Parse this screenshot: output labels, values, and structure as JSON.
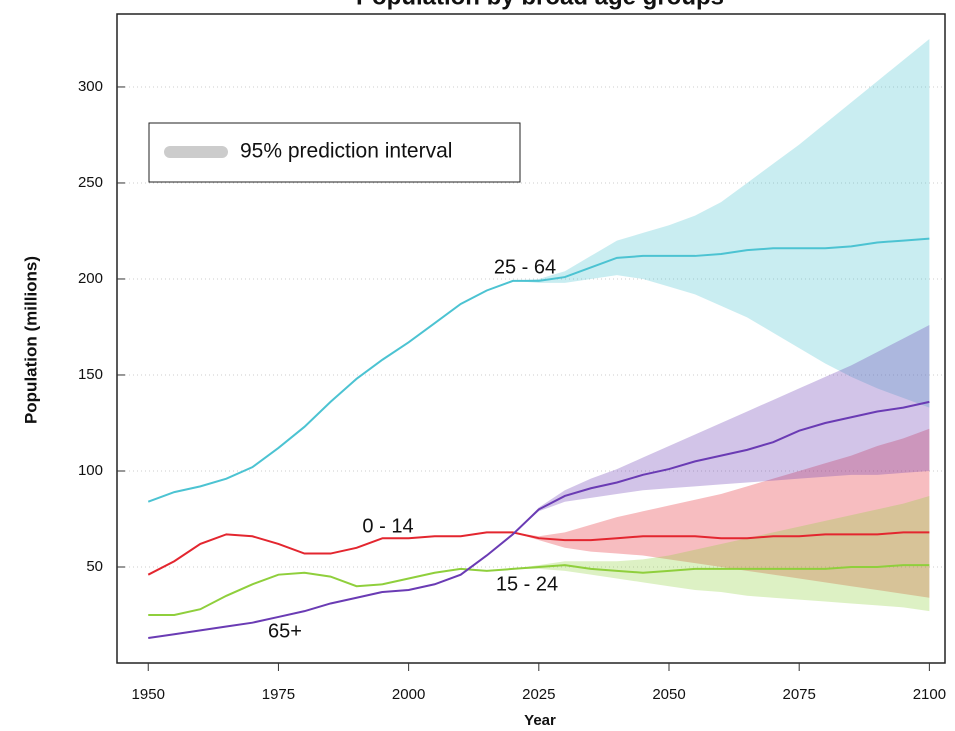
{
  "chart_data": {
    "type": "line",
    "title": "Population by broad age groups",
    "x_label": "Year",
    "y_label": "Population (millions)",
    "x": [
      1950,
      1955,
      1960,
      1965,
      1970,
      1975,
      1980,
      1985,
      1990,
      1995,
      2000,
      2005,
      2010,
      2015,
      2020,
      2025,
      2030,
      2035,
      2040,
      2045,
      2050,
      2055,
      2060,
      2065,
      2070,
      2075,
      2080,
      2085,
      2090,
      2095,
      2100
    ],
    "xlim": [
      1944,
      2103
    ],
    "xticks": [
      1950,
      1975,
      2000,
      2025,
      2050,
      2075,
      2100
    ],
    "ylim": [
      0,
      338
    ],
    "yticks": [
      50,
      100,
      150,
      200,
      250,
      300
    ],
    "grid": true,
    "legend": {
      "label": "95% prediction interval",
      "color": "#cccccc",
      "position": "upper left"
    },
    "series": [
      {
        "name": "25 - 64",
        "color": "#4cc3d2",
        "values": [
          84,
          89,
          92,
          96,
          102,
          112,
          123,
          136,
          148,
          158,
          167,
          177,
          187,
          194,
          199,
          199,
          201,
          206,
          211,
          212,
          212,
          212,
          213,
          215,
          216,
          216,
          216,
          217,
          219,
          220,
          221
        ],
        "upper": [
          null,
          null,
          null,
          null,
          null,
          null,
          null,
          null,
          null,
          null,
          null,
          null,
          null,
          null,
          199,
          200,
          204,
          212,
          220,
          224,
          228,
          233,
          240,
          250,
          260,
          270,
          281,
          292,
          303,
          314,
          325
        ],
        "lower": [
          null,
          null,
          null,
          null,
          null,
          null,
          null,
          null,
          null,
          null,
          null,
          null,
          null,
          null,
          199,
          198,
          198,
          200,
          202,
          200,
          196,
          192,
          186,
          180,
          172,
          164,
          156,
          149,
          143,
          138,
          133
        ]
      },
      {
        "name": "0 - 14",
        "color": "#e3262f",
        "values": [
          46,
          53,
          62,
          67,
          66,
          62,
          57,
          57,
          60,
          65,
          65,
          66,
          66,
          68,
          68,
          65,
          64,
          64,
          65,
          66,
          66,
          66,
          65,
          65,
          66,
          66,
          67,
          67,
          67,
          68,
          68
        ],
        "upper": [
          null,
          null,
          null,
          null,
          null,
          null,
          null,
          null,
          null,
          null,
          null,
          null,
          null,
          null,
          68,
          66,
          68,
          72,
          76,
          79,
          82,
          85,
          88,
          92,
          96,
          100,
          104,
          108,
          113,
          117,
          122
        ],
        "lower": [
          null,
          null,
          null,
          null,
          null,
          null,
          null,
          null,
          null,
          null,
          null,
          null,
          null,
          null,
          68,
          64,
          60,
          58,
          57,
          56,
          54,
          52,
          50,
          48,
          46,
          44,
          42,
          40,
          38,
          36,
          34
        ]
      },
      {
        "name": "15 - 24",
        "color": "#8fcf3c",
        "values": [
          25,
          25,
          28,
          35,
          41,
          46,
          47,
          45,
          40,
          41,
          44,
          47,
          49,
          48,
          49,
          50,
          51,
          49,
          48,
          47,
          48,
          49,
          49,
          49,
          49,
          49,
          49,
          50,
          50,
          51,
          51
        ],
        "upper": [
          null,
          null,
          null,
          null,
          null,
          null,
          null,
          null,
          null,
          null,
          null,
          null,
          null,
          null,
          49,
          51,
          53,
          53,
          53,
          54,
          56,
          59,
          62,
          65,
          68,
          71,
          74,
          77,
          80,
          83,
          87
        ],
        "lower": [
          null,
          null,
          null,
          null,
          null,
          null,
          null,
          null,
          null,
          null,
          null,
          null,
          null,
          null,
          49,
          49,
          48,
          46,
          44,
          42,
          40,
          38,
          37,
          35,
          34,
          33,
          32,
          31,
          30,
          29,
          27
        ]
      },
      {
        "name": "65+",
        "color": "#6a3bb4",
        "values": [
          13,
          15,
          17,
          19,
          21,
          24,
          27,
          31,
          34,
          37,
          38,
          41,
          46,
          56,
          67,
          80,
          87,
          91,
          94,
          98,
          101,
          105,
          108,
          111,
          115,
          121,
          125,
          128,
          131,
          133,
          136
        ],
        "upper": [
          null,
          null,
          null,
          null,
          null,
          null,
          null,
          null,
          null,
          null,
          null,
          null,
          null,
          null,
          67,
          81,
          90,
          96,
          101,
          107,
          113,
          119,
          125,
          131,
          137,
          143,
          149,
          155,
          162,
          169,
          176
        ],
        "lower": [
          null,
          null,
          null,
          null,
          null,
          null,
          null,
          null,
          null,
          null,
          null,
          null,
          null,
          null,
          67,
          79,
          84,
          86,
          88,
          90,
          91,
          92,
          93,
          94,
          95,
          96,
          97,
          98,
          98,
          99,
          100
        ]
      }
    ]
  }
}
